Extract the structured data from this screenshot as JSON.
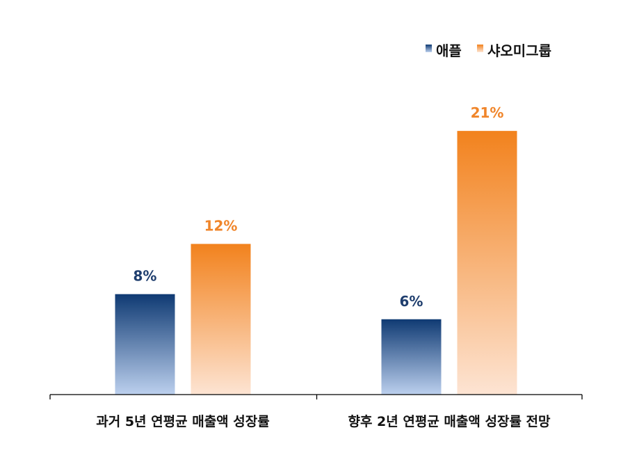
{
  "chart_data": {
    "type": "bar",
    "categories": [
      "과거 5년 연평균 매출액 성장률",
      "향후 2년 연평균 매출액 성장률 전망"
    ],
    "series": [
      {
        "name": "애플",
        "values": [
          8,
          6
        ],
        "labels": [
          "8%",
          "6%"
        ],
        "color_top": "#0f3a73",
        "color_bottom": "#bcd0ee",
        "label_color": "#1f3e6e"
      },
      {
        "name": "샤오미그룹",
        "values": [
          12,
          21
        ],
        "labels": [
          "12%",
          "21%"
        ],
        "color_top": "#f2821d",
        "color_bottom": "#fde4d3",
        "label_color": "#f0852a"
      }
    ],
    "ylim": [
      0,
      24
    ],
    "unit": "%",
    "grid": false,
    "legend_position": "top-right",
    "axis_color": "#000000"
  }
}
